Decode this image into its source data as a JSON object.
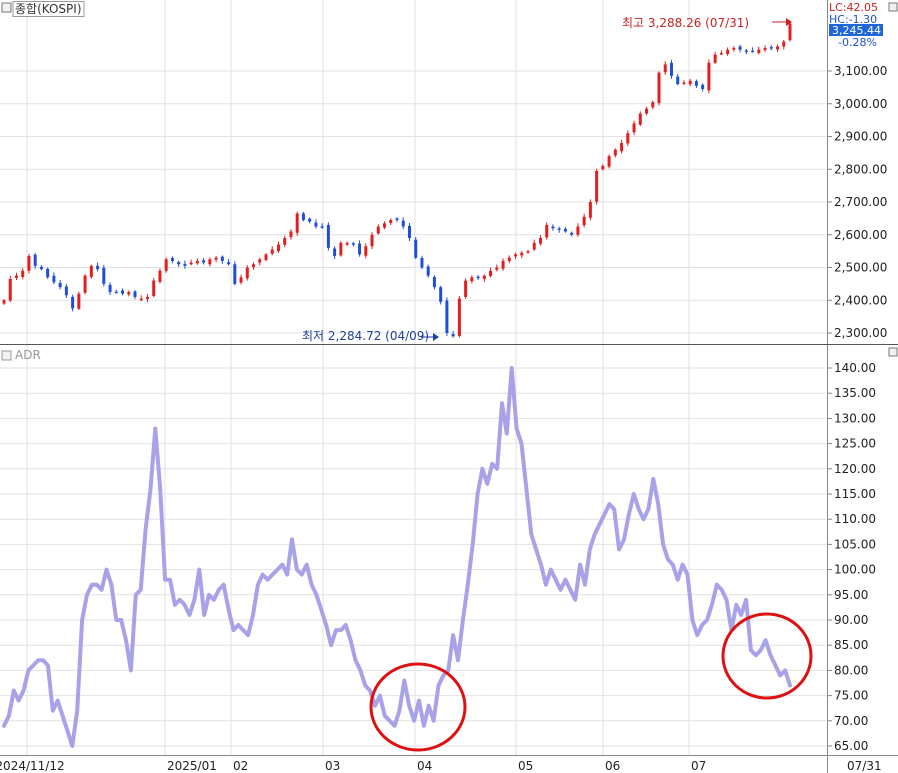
{
  "chart_data": [
    {
      "type": "candlestick",
      "title": "종합(KOSPI)",
      "ylim": [
        2250,
        3310
      ],
      "y_ticks": [
        "3,100.00",
        "3,000.00",
        "2,900.00",
        "2,800.00",
        "2,700.00",
        "2,600.00",
        "2,500.00",
        "2,400.00",
        "2,300.00"
      ],
      "y_tick_values": [
        3100,
        3000,
        2900,
        2800,
        2700,
        2600,
        2500,
        2400,
        2300
      ],
      "legend_text": {
        "lc": "LC:42.05",
        "hc": "HC:-1.30",
        "last_price": "3,245.44",
        "last_change": "-0.28%"
      },
      "annotations": {
        "high": "최고 3,288.26 (07/31)",
        "low": "최저 2,284.72 (04/09)"
      },
      "colors": {
        "up": "#e02020",
        "down": "#1f4fd8",
        "high_text": "#cc2222",
        "low_text": "#1f3fa0",
        "price_box": "#1f66d8"
      },
      "closes": [
        2400,
        2465,
        2475,
        2490,
        2535,
        2505,
        2495,
        2470,
        2455,
        2440,
        2415,
        2375,
        2420,
        2475,
        2505,
        2495,
        2450,
        2425,
        2425,
        2420,
        2425,
        2410,
        2405,
        2410,
        2460,
        2490,
        2525,
        2520,
        2510,
        2505,
        2515,
        2520,
        2515,
        2525,
        2530,
        2520,
        2510,
        2450,
        2470,
        2500,
        2510,
        2525,
        2540,
        2555,
        2570,
        2590,
        2610,
        2665,
        2645,
        2640,
        2625,
        2625,
        2560,
        2535,
        2575,
        2575,
        2570,
        2540,
        2565,
        2600,
        2625,
        2635,
        2645,
        2645,
        2625,
        2590,
        2530,
        2500,
        2475,
        2440,
        2395,
        2300,
        2290,
        2405,
        2460,
        2470,
        2470,
        2475,
        2490,
        2500,
        2520,
        2530,
        2540,
        2545,
        2550,
        2575,
        2590,
        2630,
        2620,
        2615,
        2610,
        2600,
        2625,
        2655,
        2700,
        2795,
        2810,
        2840,
        2860,
        2880,
        2910,
        2940,
        2970,
        2985,
        3005,
        3095,
        3120,
        3085,
        3060,
        3065,
        3070,
        3055,
        3045,
        3125,
        3150,
        3155,
        3165,
        3170,
        3165,
        3160,
        3160,
        3165,
        3170,
        3170,
        3175,
        3190,
        3245
      ]
    },
    {
      "type": "line",
      "title": "ADR",
      "ylim": [
        63,
        142
      ],
      "y_ticks": [
        "140.00",
        "135.00",
        "130.00",
        "125.00",
        "120.00",
        "115.00",
        "110.00",
        "105.00",
        "100.00",
        "95.00",
        "90.00",
        "85.00",
        "80.00",
        "75.00",
        "70.00",
        "65.00"
      ],
      "y_tick_values": [
        140,
        135,
        130,
        125,
        120,
        115,
        110,
        105,
        100,
        95,
        90,
        85,
        80,
        75,
        70,
        65
      ],
      "x_ticks": [
        "2024/11/12",
        "2025/01",
        "02",
        "03",
        "04",
        "05",
        "06",
        "07",
        "07/31"
      ],
      "color": "#a8a2e8",
      "highlight_color": "#dd1111",
      "values": [
        69,
        71,
        76,
        74,
        76,
        80,
        81,
        82,
        82,
        81,
        72,
        74,
        71,
        68,
        65,
        72,
        90,
        95,
        97,
        97,
        96,
        100,
        97,
        90,
        90,
        86,
        80,
        95,
        96,
        108,
        116,
        128,
        116,
        98,
        98,
        93,
        94,
        93,
        91,
        94,
        100,
        91,
        95,
        94,
        96,
        97,
        92,
        88,
        89,
        88,
        87,
        91,
        97,
        99,
        98,
        99,
        100,
        101,
        99,
        106,
        100,
        99,
        101,
        97,
        95,
        92,
        89,
        85,
        88,
        88,
        89,
        86,
        82,
        80,
        77,
        76,
        73,
        75,
        71,
        70,
        69,
        72,
        78,
        73,
        70,
        74,
        69,
        73,
        70,
        77,
        79,
        80,
        87,
        82,
        90,
        97,
        105,
        115,
        120,
        117,
        121,
        120,
        133,
        127,
        140,
        128,
        125,
        116,
        107,
        104,
        101,
        97,
        100,
        98,
        96,
        98,
        96,
        94,
        101,
        97,
        104,
        107,
        109,
        111,
        113,
        112,
        104,
        106,
        111,
        115,
        112,
        110,
        112,
        118,
        113,
        105,
        102,
        101,
        98,
        101,
        99,
        90,
        87,
        89,
        90,
        93,
        97,
        96,
        94,
        88,
        93,
        91,
        94,
        84,
        83,
        84,
        86,
        83,
        81,
        79,
        80,
        77
      ]
    }
  ]
}
